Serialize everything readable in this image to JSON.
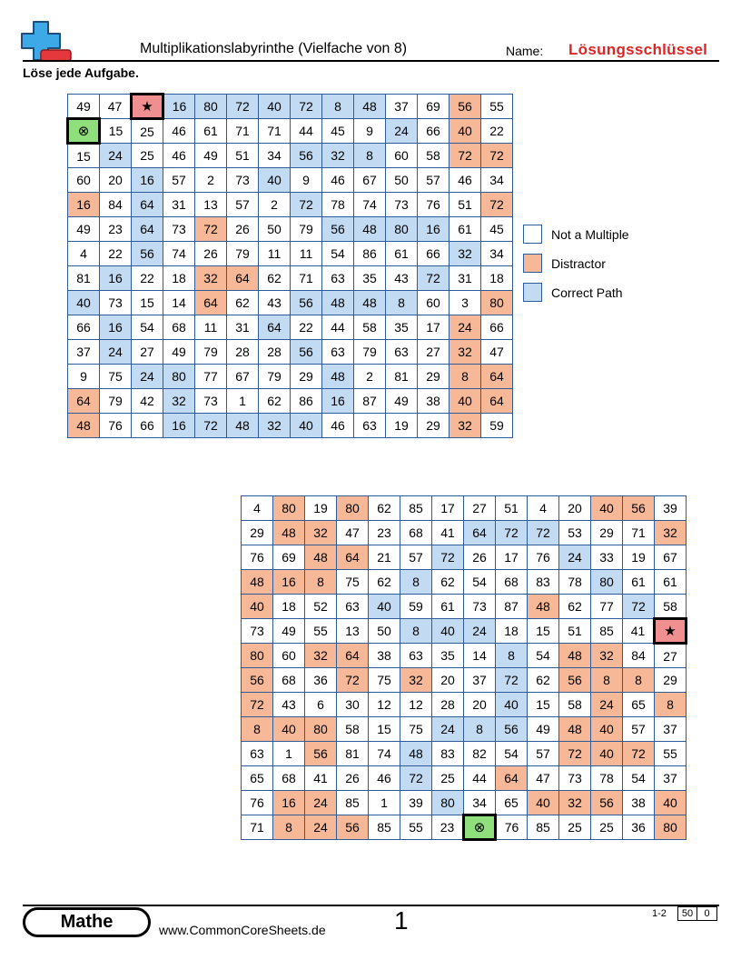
{
  "header": {
    "title": "Multiplikationslabyrinthe (Vielfache von 8)",
    "name_label": "Name:",
    "name_value": "Lösungsschlüssel",
    "instructions": "Löse jede Aufgabe."
  },
  "logo": {
    "icons": [
      "plus-icon",
      "minus-icon"
    ],
    "plus_color": "#3da9e6",
    "minus_color": "#e4383c"
  },
  "colors": {
    "grid_color": "#2e5c9a",
    "fill_colors": [
      "#ffffff",
      "#f6b896",
      "#c2dbf3",
      "#f08f8f",
      "#8fe07c"
    ]
  },
  "legend": [
    {
      "label": "Not a Multiple",
      "fill": 0
    },
    {
      "label": "Distractor",
      "fill": 1
    },
    {
      "label": "Correct Path",
      "fill": 2
    }
  ],
  "mazes": [
    {
      "values": [
        [
          49,
          47,
          "★",
          16,
          80,
          72,
          40,
          72,
          8,
          48,
          37,
          69,
          56,
          55
        ],
        [
          "⊗",
          15,
          25,
          46,
          61,
          71,
          71,
          44,
          45,
          9,
          24,
          66,
          40,
          22
        ],
        [
          15,
          24,
          25,
          46,
          49,
          51,
          34,
          56,
          32,
          8,
          60,
          58,
          72,
          72
        ],
        [
          60,
          20,
          16,
          57,
          2,
          73,
          40,
          9,
          46,
          67,
          50,
          57,
          46,
          34
        ],
        [
          16,
          84,
          64,
          31,
          13,
          57,
          2,
          72,
          78,
          74,
          73,
          76,
          51,
          72
        ],
        [
          49,
          23,
          64,
          73,
          72,
          26,
          50,
          79,
          56,
          48,
          80,
          16,
          61,
          45
        ],
        [
          4,
          22,
          56,
          74,
          26,
          79,
          11,
          11,
          54,
          86,
          61,
          66,
          32,
          34
        ],
        [
          81,
          16,
          22,
          18,
          32,
          64,
          62,
          71,
          63,
          35,
          43,
          72,
          31,
          18
        ],
        [
          40,
          73,
          15,
          14,
          64,
          62,
          43,
          56,
          48,
          48,
          8,
          60,
          3,
          80
        ],
        [
          66,
          16,
          54,
          68,
          11,
          31,
          64,
          22,
          44,
          58,
          35,
          17,
          24,
          66
        ],
        [
          37,
          24,
          27,
          49,
          79,
          28,
          28,
          56,
          63,
          79,
          63,
          27,
          32,
          47
        ],
        [
          9,
          75,
          24,
          80,
          77,
          67,
          79,
          29,
          48,
          2,
          81,
          29,
          8,
          64
        ],
        [
          64,
          79,
          42,
          32,
          73,
          1,
          62,
          86,
          16,
          87,
          49,
          38,
          40,
          64
        ],
        [
          48,
          76,
          66,
          16,
          72,
          48,
          32,
          40,
          46,
          63,
          19,
          29,
          32,
          59
        ]
      ],
      "fills": [
        [
          0,
          0,
          3,
          2,
          2,
          2,
          2,
          2,
          2,
          2,
          0,
          0,
          1,
          0
        ],
        [
          4,
          0,
          0,
          0,
          0,
          0,
          0,
          0,
          0,
          0,
          2,
          0,
          1,
          0
        ],
        [
          0,
          2,
          0,
          0,
          0,
          0,
          0,
          2,
          2,
          2,
          0,
          0,
          1,
          1
        ],
        [
          0,
          0,
          2,
          0,
          0,
          0,
          2,
          0,
          0,
          0,
          0,
          0,
          0,
          0
        ],
        [
          1,
          0,
          2,
          0,
          0,
          0,
          0,
          2,
          0,
          0,
          0,
          0,
          0,
          1
        ],
        [
          0,
          0,
          2,
          0,
          1,
          0,
          0,
          0,
          2,
          2,
          2,
          2,
          0,
          0
        ],
        [
          0,
          0,
          2,
          0,
          0,
          0,
          0,
          0,
          0,
          0,
          0,
          0,
          2,
          0
        ],
        [
          0,
          2,
          0,
          0,
          1,
          1,
          0,
          0,
          0,
          0,
          0,
          2,
          0,
          0
        ],
        [
          2,
          0,
          0,
          0,
          1,
          0,
          0,
          2,
          2,
          2,
          2,
          0,
          0,
          1
        ],
        [
          0,
          2,
          0,
          0,
          0,
          0,
          2,
          0,
          0,
          0,
          0,
          0,
          1,
          0
        ],
        [
          0,
          2,
          0,
          0,
          0,
          0,
          0,
          2,
          0,
          0,
          0,
          0,
          1,
          0
        ],
        [
          0,
          0,
          2,
          2,
          0,
          0,
          0,
          0,
          2,
          0,
          0,
          0,
          1,
          1
        ],
        [
          1,
          0,
          0,
          2,
          0,
          0,
          0,
          0,
          2,
          0,
          0,
          0,
          1,
          1
        ],
        [
          1,
          0,
          0,
          2,
          2,
          2,
          2,
          2,
          0,
          0,
          0,
          0,
          1,
          0
        ]
      ]
    },
    {
      "values": [
        [
          4,
          80,
          19,
          80,
          62,
          85,
          17,
          27,
          51,
          4,
          20,
          40,
          56,
          39
        ],
        [
          29,
          48,
          32,
          47,
          23,
          68,
          41,
          64,
          72,
          72,
          53,
          29,
          71,
          32
        ],
        [
          76,
          69,
          48,
          64,
          21,
          57,
          72,
          26,
          17,
          76,
          24,
          33,
          19,
          67
        ],
        [
          48,
          16,
          8,
          75,
          62,
          8,
          62,
          54,
          68,
          83,
          78,
          80,
          61,
          61
        ],
        [
          40,
          18,
          52,
          63,
          40,
          59,
          61,
          73,
          87,
          48,
          62,
          77,
          72,
          58
        ],
        [
          73,
          49,
          55,
          13,
          50,
          8,
          40,
          24,
          18,
          15,
          51,
          85,
          41,
          "★"
        ],
        [
          80,
          60,
          32,
          64,
          38,
          63,
          35,
          14,
          8,
          54,
          48,
          32,
          84,
          27
        ],
        [
          56,
          68,
          36,
          72,
          75,
          32,
          20,
          37,
          72,
          62,
          56,
          8,
          8,
          29
        ],
        [
          72,
          43,
          6,
          30,
          12,
          12,
          28,
          20,
          40,
          15,
          58,
          24,
          65,
          8
        ],
        [
          8,
          40,
          80,
          58,
          15,
          75,
          24,
          8,
          56,
          49,
          48,
          40,
          57,
          37
        ],
        [
          63,
          1,
          56,
          81,
          74,
          48,
          83,
          82,
          54,
          57,
          72,
          40,
          72,
          55
        ],
        [
          65,
          68,
          41,
          26,
          46,
          72,
          25,
          44,
          64,
          47,
          73,
          78,
          54,
          37
        ],
        [
          76,
          16,
          24,
          85,
          1,
          39,
          80,
          34,
          65,
          40,
          32,
          56,
          38,
          40
        ],
        [
          71,
          8,
          24,
          56,
          85,
          55,
          23,
          "⊗",
          76,
          85,
          25,
          25,
          36,
          80
        ]
      ],
      "fills": [
        [
          0,
          1,
          0,
          1,
          0,
          0,
          0,
          0,
          0,
          0,
          0,
          1,
          1,
          0
        ],
        [
          0,
          1,
          1,
          0,
          0,
          0,
          0,
          2,
          2,
          2,
          0,
          0,
          0,
          1
        ],
        [
          0,
          0,
          1,
          1,
          0,
          0,
          2,
          0,
          0,
          0,
          2,
          0,
          0,
          0
        ],
        [
          1,
          1,
          1,
          0,
          0,
          2,
          0,
          0,
          0,
          0,
          0,
          2,
          0,
          0
        ],
        [
          1,
          0,
          0,
          0,
          2,
          0,
          0,
          0,
          0,
          1,
          0,
          0,
          2,
          0
        ],
        [
          0,
          0,
          0,
          0,
          0,
          2,
          2,
          2,
          0,
          0,
          0,
          0,
          0,
          3
        ],
        [
          1,
          0,
          1,
          1,
          0,
          0,
          0,
          0,
          2,
          0,
          1,
          1,
          0,
          0
        ],
        [
          1,
          0,
          0,
          1,
          0,
          1,
          0,
          0,
          2,
          0,
          1,
          1,
          1,
          0
        ],
        [
          1,
          0,
          0,
          0,
          0,
          0,
          0,
          0,
          2,
          0,
          0,
          1,
          0,
          1
        ],
        [
          1,
          1,
          1,
          0,
          0,
          0,
          2,
          2,
          2,
          0,
          1,
          1,
          0,
          0
        ],
        [
          0,
          0,
          1,
          0,
          0,
          2,
          0,
          0,
          0,
          0,
          1,
          1,
          1,
          0
        ],
        [
          0,
          0,
          0,
          0,
          0,
          2,
          0,
          0,
          1,
          0,
          0,
          0,
          0,
          0
        ],
        [
          0,
          1,
          1,
          0,
          0,
          0,
          2,
          0,
          0,
          1,
          1,
          1,
          0,
          1
        ],
        [
          0,
          1,
          1,
          1,
          0,
          0,
          0,
          4,
          0,
          0,
          0,
          0,
          0,
          1
        ]
      ]
    }
  ],
  "footer": {
    "subject": "Mathe",
    "website": "www.CommonCoreSheets.de",
    "page": "1",
    "range": "1-2",
    "scores": [
      "50",
      "0"
    ]
  }
}
